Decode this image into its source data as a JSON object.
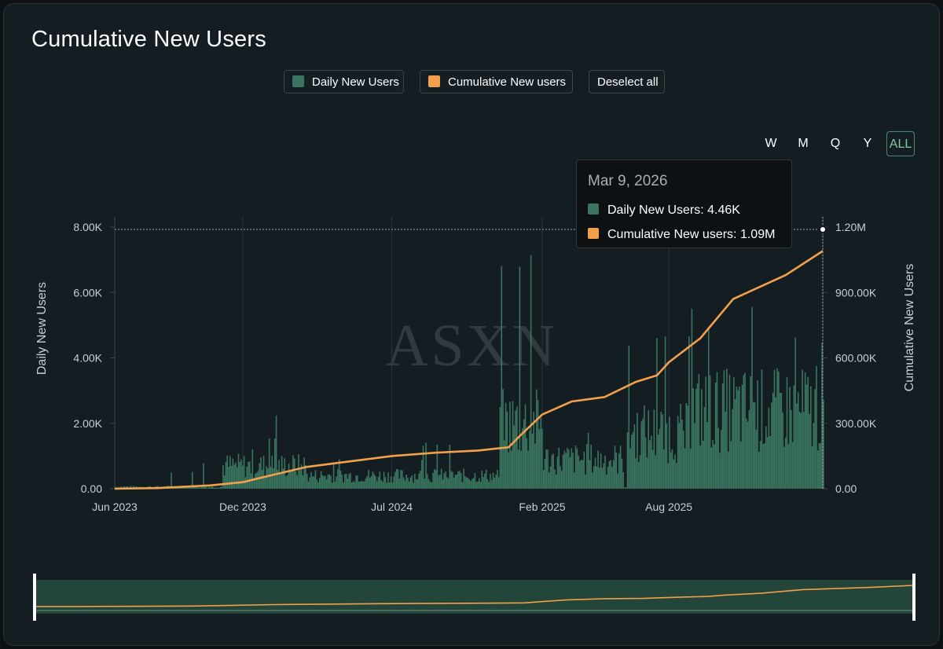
{
  "colors": {
    "daily": "#3a7560",
    "cumulative": "#f2a04b",
    "axis_text": "#c9ced2",
    "grid": "#2a353b"
  },
  "title": "Cumulative New Users",
  "legend": {
    "daily_label": "Daily New Users",
    "cumulative_label": "Cumulative New users",
    "deselect_label": "Deselect all"
  },
  "range_buttons": [
    "W",
    "M",
    "Q",
    "Y",
    "ALL"
  ],
  "range_active": "ALL",
  "watermark": "ASXN",
  "tooltip": {
    "date": "Mar 9, 2026",
    "daily": "Daily New Users: 4.46K",
    "cumulative": "Cumulative New users: 1.09M"
  },
  "chart_data": {
    "type": "bar+line",
    "title": "Cumulative New Users",
    "x_ticks": [
      "Jun 2023",
      "Dec 2023",
      "Jul 2024",
      "Feb 2025",
      "Aug 2025"
    ],
    "x_start": "2023-06-01",
    "x_end": "2026-03-09",
    "y_left": {
      "label": "Daily New Users",
      "ticks": [
        "0.00",
        "2.00K",
        "4.00K",
        "6.00K",
        "8.00K"
      ],
      "range": [
        0,
        8000
      ]
    },
    "y_right": {
      "label": "Cumulative New Users",
      "ticks": [
        "0.00",
        "300.00K",
        "600.00K",
        "900.00K",
        "1.20M"
      ],
      "range": [
        0,
        1200000
      ]
    },
    "series": [
      {
        "name": "Daily New Users",
        "kind": "bar",
        "axis": "left",
        "approx_segments": [
          {
            "from": "2023-06",
            "to": "2023-10",
            "level": 60,
            "spikes": [
              600,
              550,
              900,
              500
            ]
          },
          {
            "from": "2023-11",
            "to": "2024-02",
            "level": 700,
            "spikes": [
              1600,
              2500,
              2500,
              1300
            ]
          },
          {
            "from": "2024-03",
            "to": "2024-12",
            "level": 400,
            "spikes": [
              1500,
              900
            ]
          },
          {
            "from": "2024-12",
            "to": "2025-02",
            "level": 2000,
            "spikes": [
              7200,
              6200,
              4500,
              3100
            ]
          },
          {
            "from": "2025-02",
            "to": "2025-05",
            "level": 900,
            "spikes": [
              2000
            ]
          },
          {
            "from": "2025-06",
            "to": "2025-09",
            "level": 1700,
            "spikes": [
              4700,
              2600
            ]
          },
          {
            "from": "2025-09",
            "to": "2026-03",
            "level": 2400,
            "spikes": [
              5700,
              5100,
              3900
            ]
          }
        ],
        "last_value": 4460
      },
      {
        "name": "Cumulative New users",
        "kind": "line",
        "axis": "right",
        "points": [
          [
            "2023-06-01",
            0
          ],
          [
            "2023-08-01",
            3000
          ],
          [
            "2023-10-15",
            15000
          ],
          [
            "2023-12-01",
            30000
          ],
          [
            "2024-01-15",
            65000
          ],
          [
            "2024-03-01",
            100000
          ],
          [
            "2024-05-01",
            125000
          ],
          [
            "2024-07-01",
            150000
          ],
          [
            "2024-09-01",
            165000
          ],
          [
            "2024-11-01",
            175000
          ],
          [
            "2024-12-15",
            190000
          ],
          [
            "2025-01-01",
            245000
          ],
          [
            "2025-02-01",
            340000
          ],
          [
            "2025-03-15",
            400000
          ],
          [
            "2025-05-01",
            420000
          ],
          [
            "2025-06-15",
            490000
          ],
          [
            "2025-07-15",
            520000
          ],
          [
            "2025-08-01",
            580000
          ],
          [
            "2025-09-15",
            690000
          ],
          [
            "2025-11-01",
            870000
          ],
          [
            "2026-01-15",
            980000
          ],
          [
            "2026-03-09",
            1090000
          ]
        ]
      }
    ]
  }
}
